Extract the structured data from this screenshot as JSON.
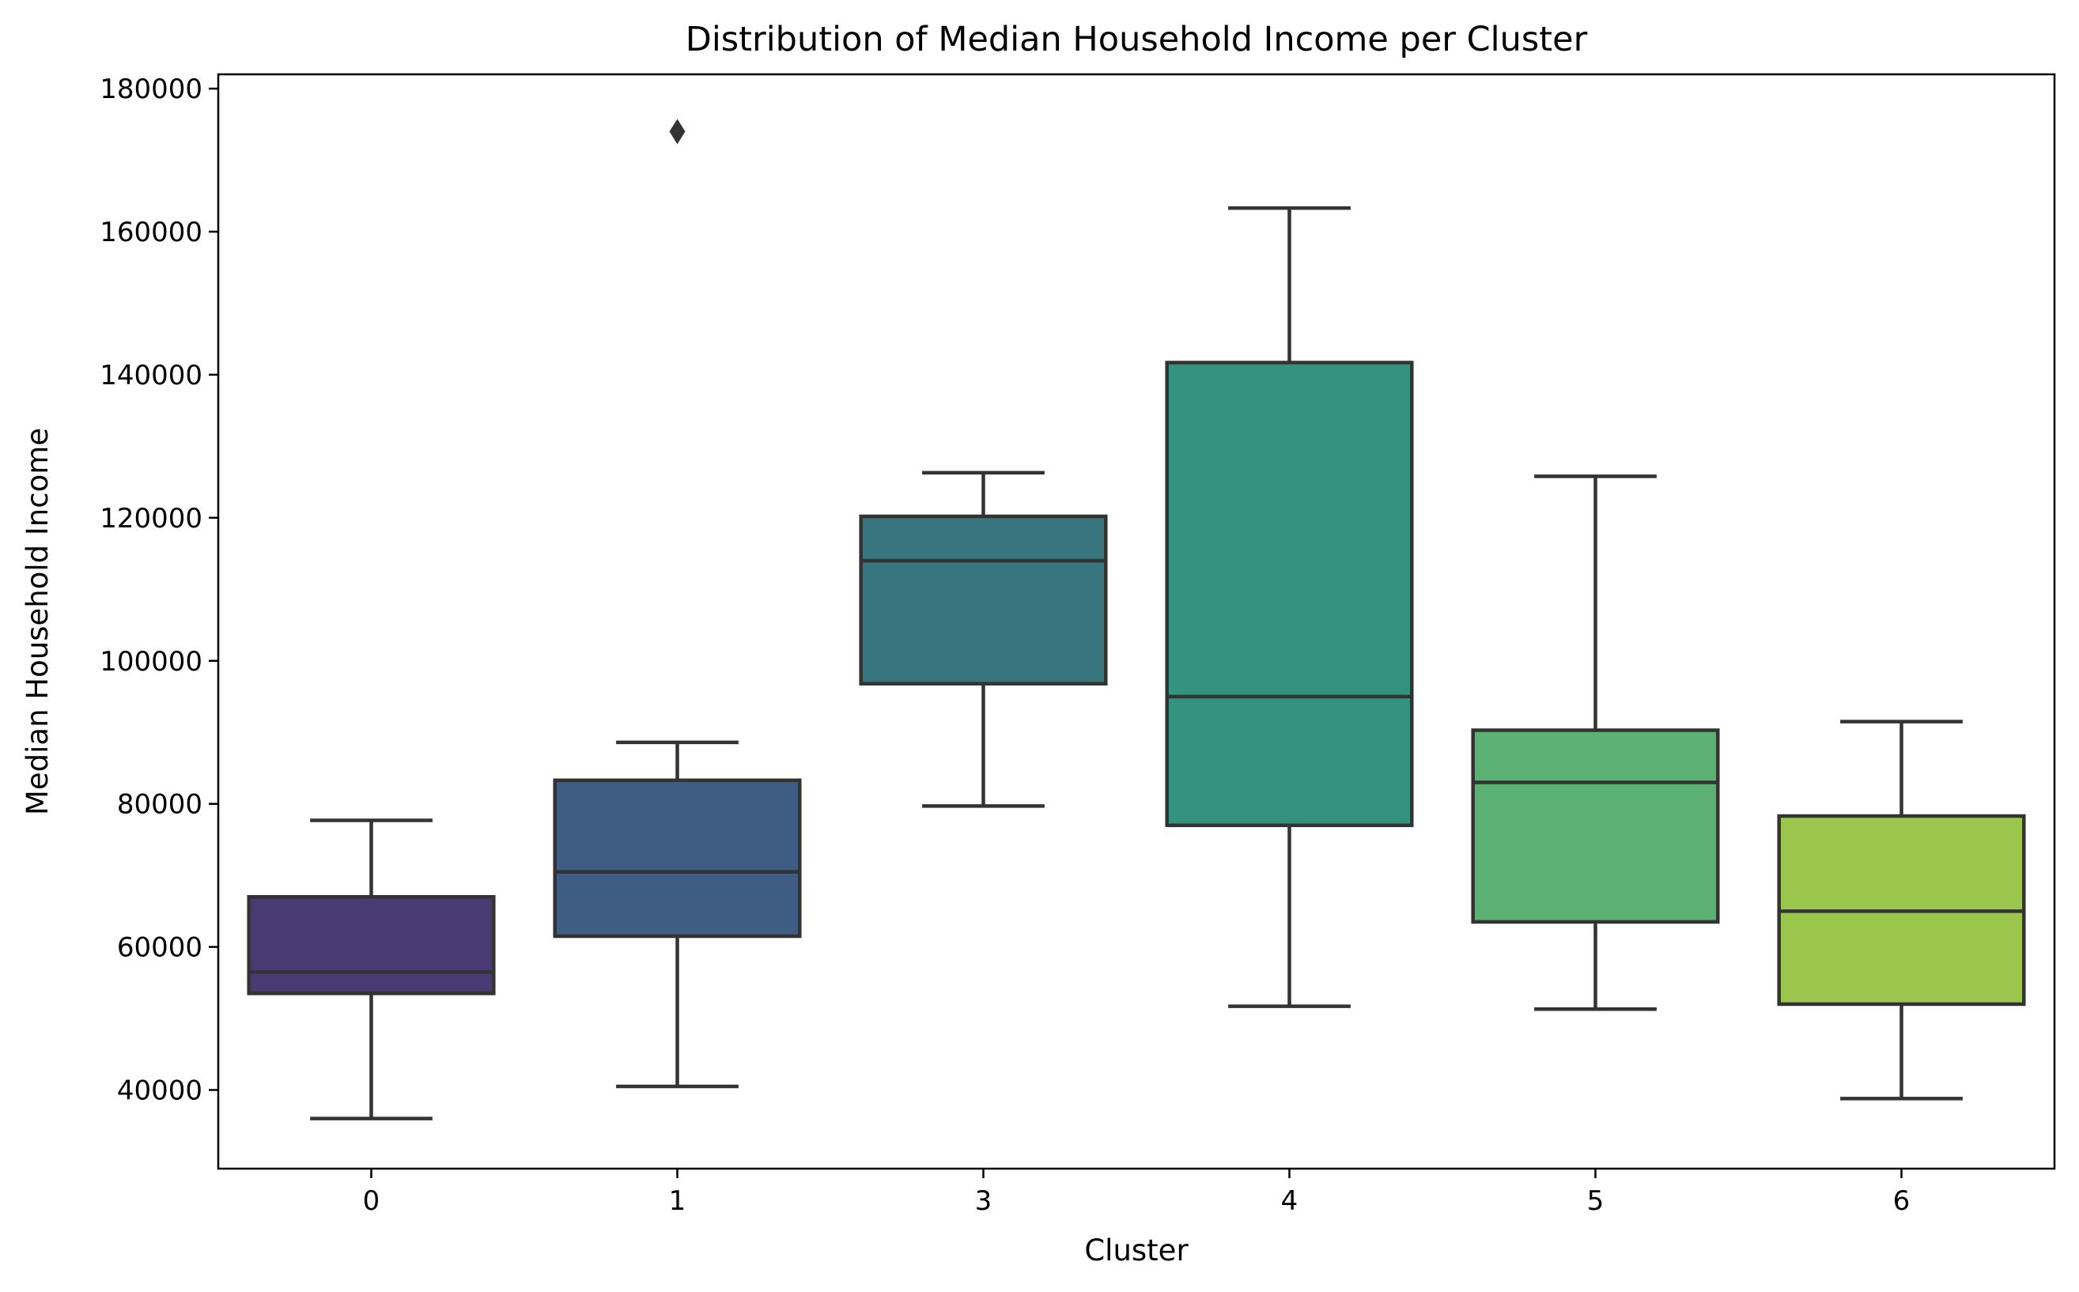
{
  "chart_data": {
    "type": "box",
    "title": "Distribution of Median Household Income per Cluster",
    "xlabel": "Cluster",
    "ylabel": "Median Household Income",
    "ylim": [
      29000,
      182000
    ],
    "yticks": [
      40000,
      60000,
      80000,
      100000,
      120000,
      140000,
      160000,
      180000
    ],
    "ytick_labels": [
      "40000",
      "60000",
      "80000",
      "100000",
      "120000",
      "140000",
      "160000",
      "180000"
    ],
    "grid": false,
    "categories": [
      "0",
      "1",
      "3",
      "4",
      "5",
      "6"
    ],
    "boxes": [
      {
        "category": "0",
        "whisker_low": 36000,
        "q1": 53500,
        "median": 56500,
        "q3": 67000,
        "whisker_high": 77700,
        "outliers": [],
        "color": "#4a3a73"
      },
      {
        "category": "1",
        "whisker_low": 40500,
        "q1": 61500,
        "median": 70500,
        "q3": 83300,
        "whisker_high": 88600,
        "outliers": [
          174000
        ],
        "color": "#3f5c85"
      },
      {
        "category": "3",
        "whisker_low": 79700,
        "q1": 96800,
        "median": 114000,
        "q3": 120200,
        "whisker_high": 126300,
        "outliers": [],
        "color": "#37767f"
      },
      {
        "category": "4",
        "whisker_low": 51700,
        "q1": 77000,
        "median": 95000,
        "q3": 141700,
        "whisker_high": 163300,
        "outliers": [],
        "color": "#33937f"
      },
      {
        "category": "5",
        "whisker_low": 51300,
        "q1": 63500,
        "median": 83000,
        "q3": 90300,
        "whisker_high": 125800,
        "outliers": [],
        "color": "#5bb173"
      },
      {
        "category": "6",
        "whisker_low": 38800,
        "q1": 52000,
        "median": 65000,
        "q3": 78300,
        "whisker_high": 91500,
        "outliers": [],
        "color": "#9ac64d"
      }
    ]
  }
}
